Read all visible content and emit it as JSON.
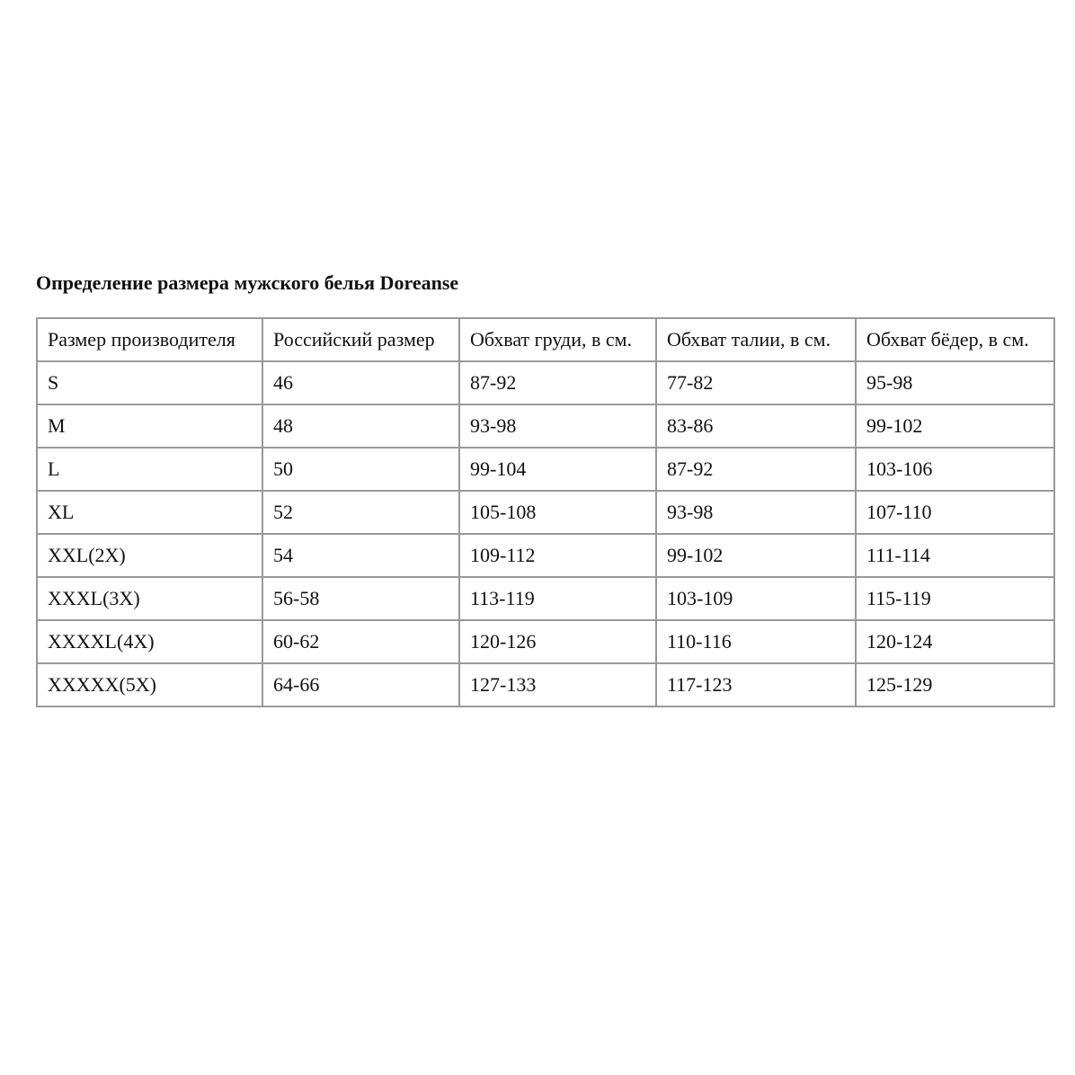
{
  "header": {
    "title": "Определение размера мужского белья Doreanse"
  },
  "table": {
    "columns": [
      "Размер производителя",
      "Российский размер",
      "Обхват груди, в см.",
      "Обхват талии, в см.",
      "Обхват бёдер, в см."
    ],
    "rows": [
      [
        "S",
        "46",
        "87-92",
        "77-82",
        "95-98"
      ],
      [
        "M",
        "48",
        "93-98",
        "83-86",
        "99-102"
      ],
      [
        "L",
        "50",
        "99-104",
        "87-92",
        "103-106"
      ],
      [
        "XL",
        "52",
        "105-108",
        "93-98",
        "107-110"
      ],
      [
        "XXL(2X)",
        "54",
        "109-112",
        "99-102",
        "111-114"
      ],
      [
        "XXXL(3X)",
        "56-58",
        "113-119",
        "103-109",
        "115-119"
      ],
      [
        "XXXXL(4X)",
        "60-62",
        "120-126",
        "110-116",
        "120-124"
      ],
      [
        "XXXXX(5X)",
        "64-66",
        "127-133",
        "117-123",
        "125-129"
      ]
    ]
  }
}
